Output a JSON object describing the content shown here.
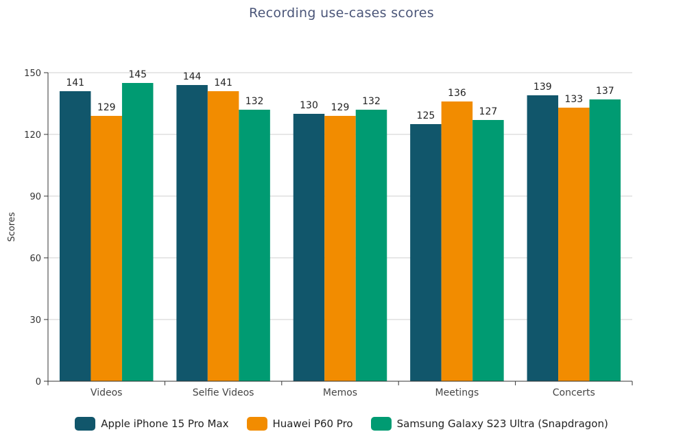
{
  "chart_data": {
    "type": "bar",
    "title": "Recording use-cases scores",
    "xlabel": "",
    "ylabel": "Scores",
    "ylim": [
      0,
      150
    ],
    "yticks": [
      0,
      30,
      60,
      90,
      120,
      150
    ],
    "grid": true,
    "legend_position": "bottom",
    "categories": [
      "Videos",
      "Selfie Videos",
      "Memos",
      "Meetings",
      "Concerts"
    ],
    "series": [
      {
        "name": "Apple iPhone 15 Pro Max",
        "color": "#11566b",
        "values": [
          141,
          144,
          130,
          125,
          139
        ]
      },
      {
        "name": "Huawei P60 Pro",
        "color": "#f28c00",
        "values": [
          129,
          141,
          129,
          136,
          133
        ]
      },
      {
        "name": "Samsung Galaxy S23 Ultra (Snapdragon)",
        "color": "#009b72",
        "values": [
          145,
          132,
          132,
          127,
          137
        ]
      }
    ]
  }
}
